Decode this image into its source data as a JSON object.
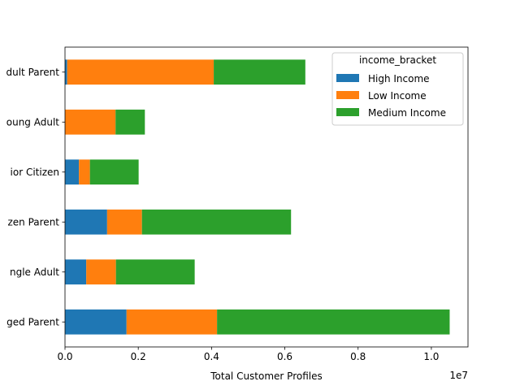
{
  "chart_data": {
    "type": "bar",
    "orientation": "horizontal",
    "stacked": true,
    "categories": [
      "Aged Parent",
      "Single Adult",
      "Citizen Parent",
      "Senior Citizen",
      "Young Adult",
      "Adult Parent"
    ],
    "tick_labels": [
      "ged Parent",
      "ngle Adult",
      "zen Parent",
      "ior Citizen",
      "oung Adult",
      "dult Parent"
    ],
    "series": [
      {
        "name": "High Income",
        "color": "#1f77b4",
        "values": [
          1680000,
          580000,
          1150000,
          380000,
          0,
          60000
        ]
      },
      {
        "name": "Low Income",
        "color": "#ff7f0e",
        "values": [
          2470000,
          810000,
          950000,
          300000,
          1380000,
          4000000
        ]
      },
      {
        "name": "Medium Income",
        "color": "#2ca02c",
        "values": [
          6350000,
          2150000,
          4070000,
          1330000,
          800000,
          2500000
        ]
      }
    ],
    "xlabel": "Total Customer Profiles",
    "ylabel": "",
    "xlim": [
      0,
      11000000
    ],
    "x_ticks": [
      0,
      2000000,
      4000000,
      6000000,
      8000000,
      10000000
    ],
    "x_tick_labels": [
      "0.0",
      "0.2",
      "0.4",
      "0.6",
      "0.8",
      "1.0"
    ],
    "x_offset_text": "1e7",
    "legend": {
      "title": "income_bracket",
      "position": "top-right"
    },
    "grid": false
  }
}
